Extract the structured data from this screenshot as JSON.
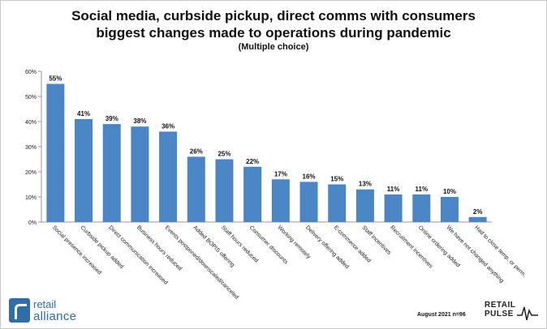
{
  "header": {
    "title_line1": "Social media, curbside pickup, direct comms with consumers",
    "title_line2": "biggest changes made to operations during pandemic",
    "subtitle": "(Multiple choice)"
  },
  "chart_data": {
    "type": "bar",
    "categories": [
      "Social presence increased",
      "Curbside pickup added",
      "Direct communication increased",
      "Business hours reduced",
      "Events postponed/downscaled/canceled",
      "Added BOPIS offering",
      "Staff hours reduced",
      "Consumer discounts",
      "Working remotely",
      "Delivery offering added",
      "E-commerce added",
      "Staff incentives",
      "Recruitment incentives",
      "Online ordering added",
      "We have not changed anything",
      "Had to close temp. or perm."
    ],
    "values": [
      55,
      41,
      39,
      38,
      36,
      26,
      25,
      22,
      17,
      16,
      15,
      13,
      11,
      11,
      10,
      2
    ],
    "value_labels": [
      "55%",
      "41%",
      "39%",
      "38%",
      "36%",
      "26%",
      "25%",
      "22%",
      "17%",
      "16%",
      "15%",
      "13%",
      "11%",
      "11%",
      "10%",
      "2%"
    ],
    "ylim": [
      0,
      60
    ],
    "y_ticks": [
      "0%",
      "10%",
      "20%",
      "30%",
      "40%",
      "50%",
      "60%"
    ],
    "grid": false,
    "bar_color": "#4a86c5"
  },
  "footer": {
    "left_logo_line1": "retail",
    "left_logo_line2": "alliance",
    "note": "August 2021 n=96",
    "right_logo_line1": "RETAIL",
    "right_logo_line2": "PULSE"
  }
}
